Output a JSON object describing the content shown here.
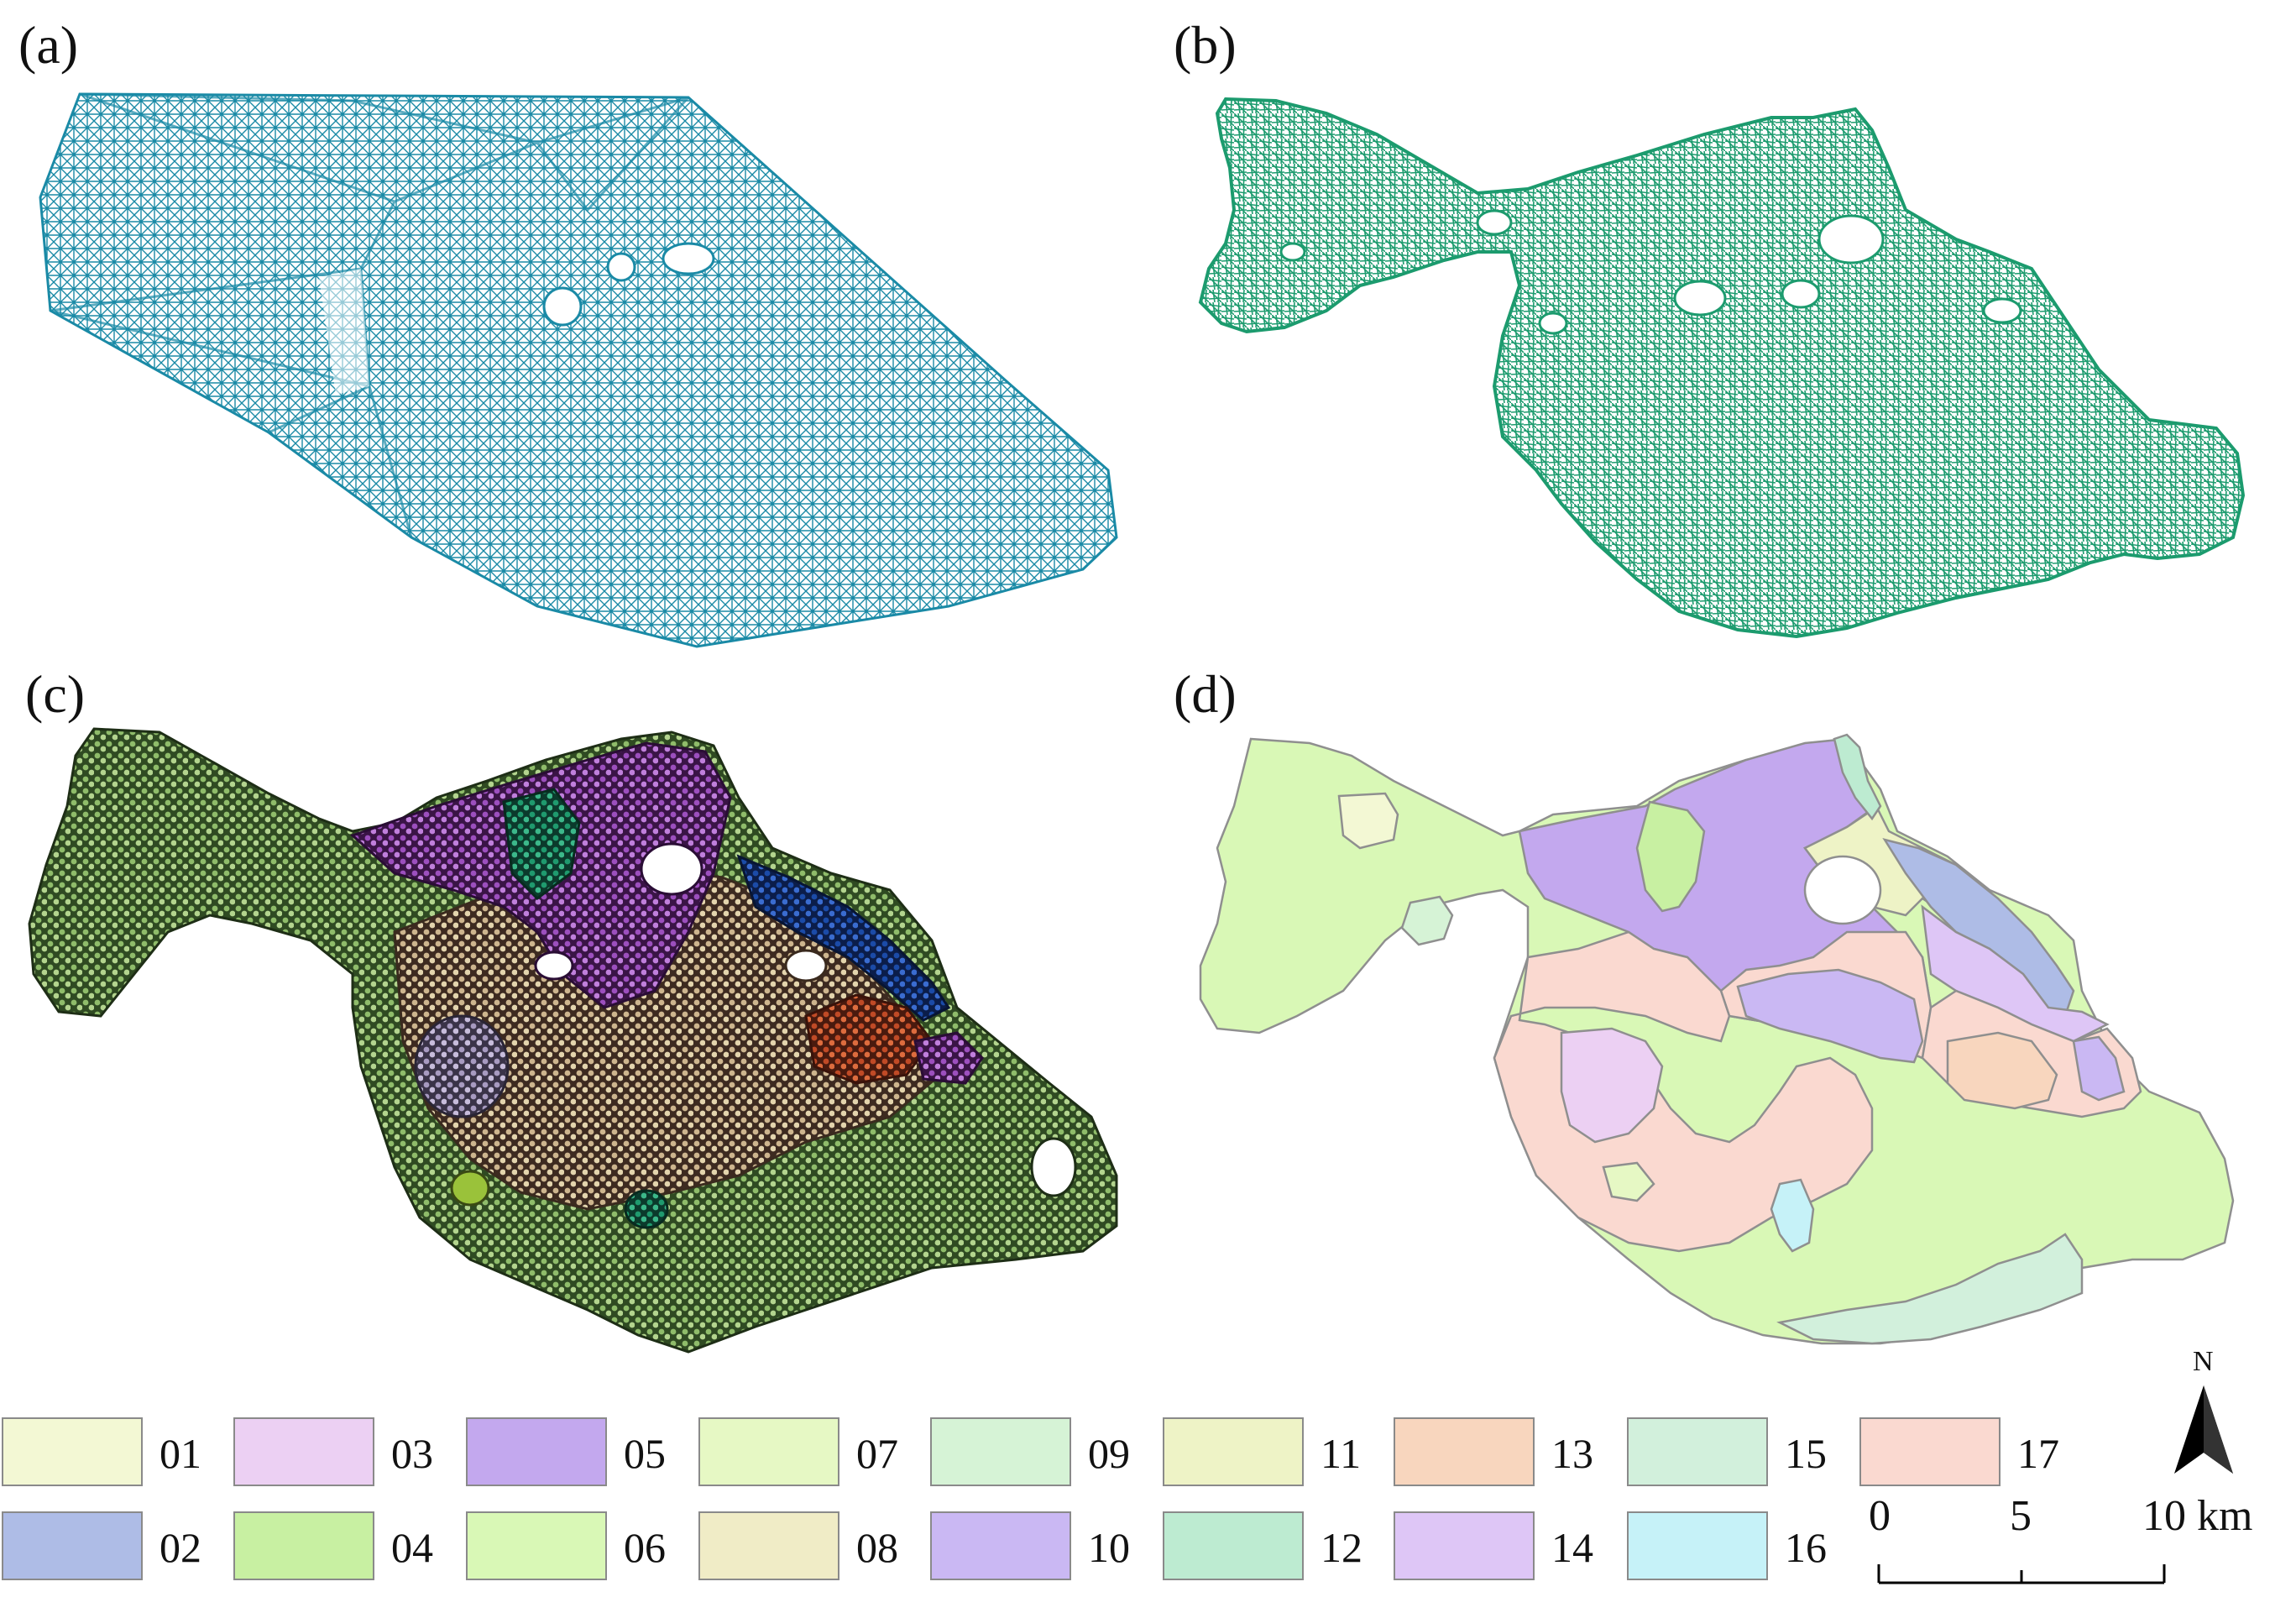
{
  "panels": [
    {
      "id": "a",
      "label": "(a)",
      "kind": "delaunay-triangulation",
      "color": "#1a8aa6"
    },
    {
      "id": "b",
      "label": "(b)",
      "kind": "road-network",
      "color": "#1c9b6e"
    },
    {
      "id": "c",
      "label": "(c)",
      "kind": "clustered-nodes"
    },
    {
      "id": "d",
      "label": "(d)",
      "kind": "functional-zones"
    }
  ],
  "legend": {
    "items": [
      {
        "code": "01",
        "color": "#f3f8d4"
      },
      {
        "code": "02",
        "color": "#aebce6"
      },
      {
        "code": "03",
        "color": "#ecd0f3"
      },
      {
        "code": "04",
        "color": "#c8f0a2"
      },
      {
        "code": "05",
        "color": "#c3a8ee"
      },
      {
        "code": "06",
        "color": "#d9f8b6"
      },
      {
        "code": "07",
        "color": "#e6f8c4"
      },
      {
        "code": "08",
        "color": "#f0ecc6"
      },
      {
        "code": "09",
        "color": "#d6f3d6"
      },
      {
        "code": "10",
        "color": "#cab8f3"
      },
      {
        "code": "11",
        "color": "#eef3c6"
      },
      {
        "code": "12",
        "color": "#bdebd1"
      },
      {
        "code": "13",
        "color": "#f8d6be"
      },
      {
        "code": "14",
        "color": "#dec6f6"
      },
      {
        "code": "15",
        "color": "#d2f0dc"
      },
      {
        "code": "16",
        "color": "#c6f2f8"
      },
      {
        "code": "17",
        "color": "#fad9d0"
      }
    ]
  },
  "scale_bar": {
    "ticks": [
      "0",
      "5",
      "10 km"
    ]
  },
  "north_arrow": {
    "label": "N",
    "icon": "north-arrow-icon"
  }
}
